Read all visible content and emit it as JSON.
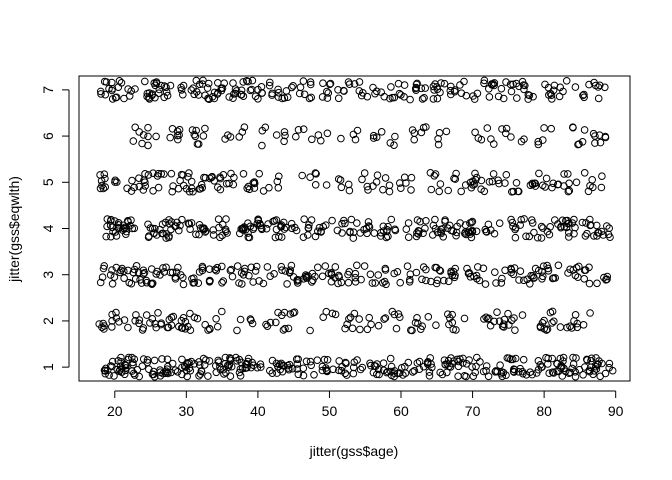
{
  "chart_data": {
    "type": "scatter",
    "title": "",
    "xlabel": "jitter(gss$age)",
    "ylabel": "jitter(gss$eqwlth)",
    "xlim": [
      15,
      92
    ],
    "ylim": [
      0.7,
      7.3
    ],
    "x_ticks": [
      20,
      30,
      40,
      50,
      60,
      70,
      80,
      90
    ],
    "y_ticks": [
      1,
      2,
      3,
      4,
      5,
      6,
      7
    ],
    "x_tick_labels": [
      "20",
      "30",
      "40",
      "50",
      "60",
      "70",
      "80",
      "90"
    ],
    "y_tick_labels": [
      "1",
      "2",
      "3",
      "4",
      "5",
      "6",
      "7"
    ],
    "grid": false,
    "marker": "open-circle",
    "levels": [
      {
        "y": 1,
        "points": 340,
        "x_min": 18.5,
        "x_max": 89.5,
        "density": "very dense 20-75, sparse after 78"
      },
      {
        "y": 2,
        "points": 150,
        "x_min": 18,
        "x_max": 87,
        "density": "moderate 18-69, sparse 72-87"
      },
      {
        "y": 3,
        "points": 230,
        "x_min": 18,
        "x_max": 89,
        "density": "dense 18-72, sparse after 80"
      },
      {
        "y": 4,
        "points": 280,
        "x_min": 19,
        "x_max": 89,
        "density": "dense across full range"
      },
      {
        "y": 5,
        "points": 170,
        "x_min": 18,
        "x_max": 89,
        "density": "dense 23-74, few points 83-89"
      },
      {
        "y": 6,
        "points": 95,
        "x_min": 22,
        "x_max": 89,
        "density": "sparse, clustered 22-66, few 70-89"
      },
      {
        "y": 7,
        "points": 230,
        "x_min": 18,
        "x_max": 89,
        "density": "dense 27-77, few at 18 and 80-89"
      }
    ]
  }
}
